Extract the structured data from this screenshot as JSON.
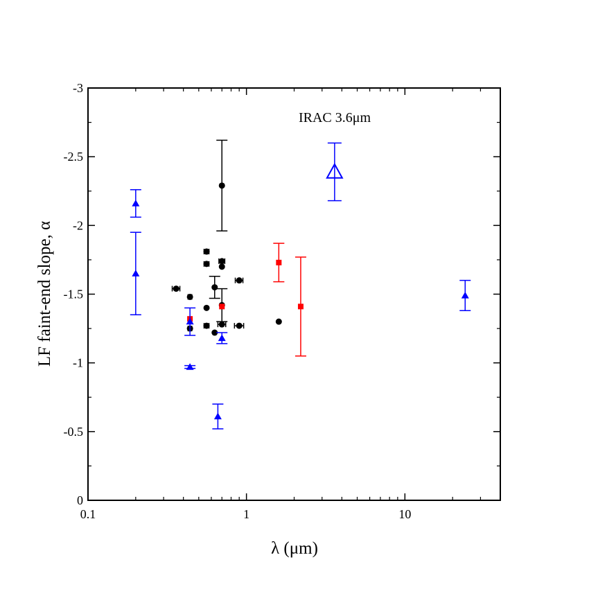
{
  "chart_data": {
    "type": "scatter",
    "title": "",
    "xlabel": "λ (μm)",
    "ylabel": "LF faint-end slope, α",
    "xscale": "log",
    "xlim": [
      0.1,
      40
    ],
    "ylim": [
      0,
      -3
    ],
    "y_inverted": true,
    "grid": false,
    "annotation": "IRAC 3.6μm",
    "x_ticks": [
      {
        "value": 0.1,
        "label": "0.1"
      },
      {
        "value": 1,
        "label": "1"
      },
      {
        "value": 10,
        "label": "10"
      }
    ],
    "y_ticks": [
      {
        "value": 0,
        "label": "0"
      },
      {
        "value": -0.5,
        "label": "-0.5"
      },
      {
        "value": -1,
        "label": "-1"
      },
      {
        "value": -1.5,
        "label": "-1.5"
      },
      {
        "value": -2,
        "label": "-2"
      },
      {
        "value": -2.5,
        "label": "-2.5"
      },
      {
        "value": -3,
        "label": "-3"
      }
    ],
    "series": [
      {
        "marker": "circle",
        "color": "#000000",
        "points": [
          {
            "x": 0.36,
            "y": -1.54,
            "xerr": 0.02
          },
          {
            "x": 0.44,
            "y": -1.48,
            "xerr": 0.012
          },
          {
            "x": 0.44,
            "y": -1.25,
            "xerr": 0.012
          },
          {
            "x": 0.56,
            "y": -1.81,
            "xerr": 0.02
          },
          {
            "x": 0.56,
            "y": -1.72,
            "xerr": 0.02
          },
          {
            "x": 0.56,
            "y": -1.4
          },
          {
            "x": 0.56,
            "y": -1.27,
            "xerr": 0.02
          },
          {
            "x": 0.63,
            "y": -1.55,
            "yerr": 0.08
          },
          {
            "x": 0.63,
            "y": -1.22
          },
          {
            "x": 0.7,
            "y": -2.29,
            "yerr": 0.33
          },
          {
            "x": 0.7,
            "y": -1.74,
            "xerr": 0.03
          },
          {
            "x": 0.7,
            "y": -1.7
          },
          {
            "x": 0.7,
            "y": -1.42,
            "yerr": 0.12
          },
          {
            "x": 0.7,
            "y": -1.28,
            "xerr": 0.04
          },
          {
            "x": 0.9,
            "y": -1.6,
            "xerr": 0.05
          },
          {
            "x": 0.9,
            "y": -1.27,
            "xerr": 0.06
          },
          {
            "x": 1.6,
            "y": -1.3
          }
        ]
      },
      {
        "marker": "square",
        "color": "#ff0000",
        "points": [
          {
            "x": 0.44,
            "y": -1.32
          },
          {
            "x": 0.7,
            "y": -1.41
          },
          {
            "x": 1.6,
            "y": -1.73,
            "yerr": 0.14
          },
          {
            "x": 2.2,
            "y": -1.41,
            "yerr": 0.36
          }
        ]
      },
      {
        "marker": "triangle",
        "color": "#0000ff",
        "points": [
          {
            "x": 0.2,
            "y": -2.16,
            "yerr": 0.1
          },
          {
            "x": 0.2,
            "y": -1.65,
            "yerr": 0.3
          },
          {
            "x": 0.44,
            "y": -1.3,
            "yerr": 0.1
          },
          {
            "x": 0.44,
            "y": -0.97,
            "yerr": 0.01
          },
          {
            "x": 0.66,
            "y": -0.61,
            "yerr": 0.09
          },
          {
            "x": 0.7,
            "y": -1.18,
            "yerr": 0.04
          },
          {
            "x": 24.0,
            "y": -1.49,
            "yerr": 0.11
          }
        ]
      },
      {
        "marker": "triangle-open",
        "color": "#0000ff",
        "points": [
          {
            "x": 3.6,
            "y": -2.39,
            "yerr": 0.21
          }
        ]
      }
    ]
  }
}
